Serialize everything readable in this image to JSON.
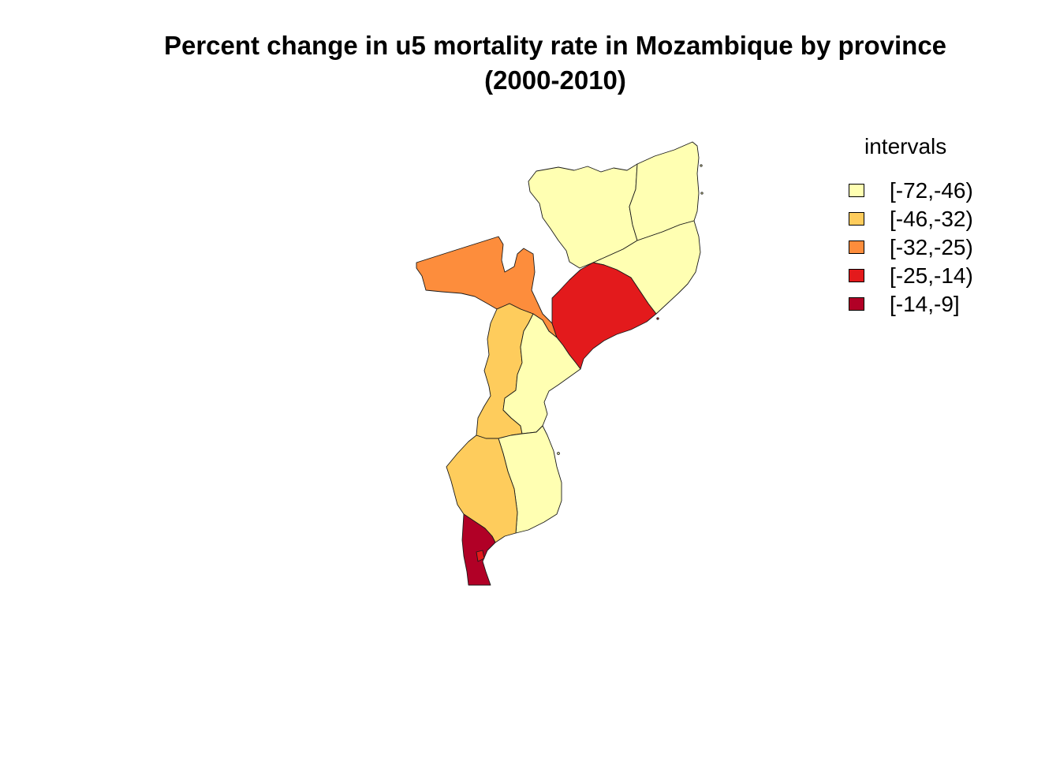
{
  "title": {
    "line1": "Percent change in u5 mortality rate in Mozambique by province",
    "line2": "(2000-2010)"
  },
  "legend": {
    "title": "intervals",
    "items": [
      {
        "label": "[-72,-46)",
        "color": "#ffffb2"
      },
      {
        "label": "[-46,-32)",
        "color": "#fecc5c"
      },
      {
        "label": "[-32,-25)",
        "color": "#fd8d3c"
      },
      {
        "label": "[-25,-14)",
        "color": "#e31a1c"
      },
      {
        "label": "[-14,-9]",
        "color": "#b10026"
      }
    ]
  },
  "map": {
    "provinces": [
      {
        "id": "niassa",
        "interval": 0
      },
      {
        "id": "cabo-delgado",
        "interval": 0
      },
      {
        "id": "nampula",
        "interval": 0
      },
      {
        "id": "tete",
        "interval": 2
      },
      {
        "id": "zambezia",
        "interval": 3
      },
      {
        "id": "manica",
        "interval": 1
      },
      {
        "id": "sofala",
        "interval": 0
      },
      {
        "id": "inhambane",
        "interval": 0
      },
      {
        "id": "gaza",
        "interval": 1
      },
      {
        "id": "maputo",
        "interval": 4
      },
      {
        "id": "maputo-city",
        "interval": 3
      }
    ]
  }
}
